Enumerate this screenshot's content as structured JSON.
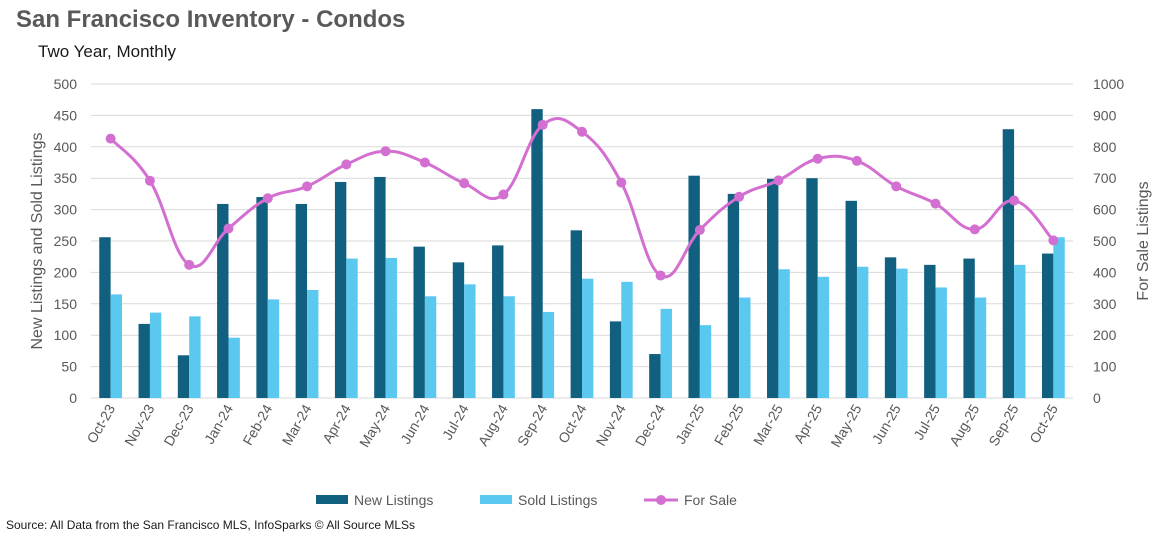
{
  "title": "San Francisco Inventory - Condos",
  "subtitle": "Two Year, Monthly",
  "source": "Source: All Data from the San Francisco MLS, InfoSparks © All Source MLSs",
  "colors": {
    "new": "#12607f",
    "sold": "#5bc8f0",
    "forsale": "#d36fd0",
    "grid": "#d9d9d9"
  },
  "chart_data": {
    "type": "bar",
    "categories": [
      "Oct-23",
      "Nov-23",
      "Dec-23",
      "Jan-24",
      "Feb-24",
      "Mar-24",
      "Apr-24",
      "May-24",
      "Jun-24",
      "Jul-24",
      "Aug-24",
      "Sep-24",
      "Oct-24",
      "Nov-24",
      "Dec-24",
      "Jan-25",
      "Feb-25",
      "Mar-25",
      "Apr-25",
      "May-25",
      "Jun-25",
      "Jul-25",
      "Aug-25",
      "Sep-25",
      "Oct-25"
    ],
    "series": [
      {
        "name": "New Listings",
        "type": "bar",
        "axis": "left",
        "values": [
          256,
          118,
          68,
          309,
          320,
          309,
          344,
          352,
          241,
          216,
          243,
          460,
          267,
          122,
          70,
          354,
          325,
          349,
          350,
          314,
          224,
          212,
          222,
          428,
          230
        ]
      },
      {
        "name": "Sold Listings",
        "type": "bar",
        "axis": "left",
        "values": [
          165,
          136,
          130,
          96,
          157,
          172,
          222,
          223,
          162,
          181,
          162,
          137,
          190,
          185,
          142,
          116,
          160,
          205,
          193,
          209,
          206,
          176,
          160,
          212,
          256
        ]
      },
      {
        "name": "For Sale",
        "type": "line",
        "axis": "right",
        "values": [
          826,
          692,
          424,
          540,
          636,
          674,
          744,
          786,
          750,
          684,
          648,
          870,
          848,
          686,
          390,
          535,
          641,
          693,
          762,
          755,
          674,
          619,
          537,
          629,
          502
        ]
      }
    ],
    "ylabel": "New Listings and Sold Listings",
    "y2label": "For Sale Listings",
    "ylim": [
      0,
      500
    ],
    "y2lim": [
      0,
      1000
    ],
    "yticks": [
      "0",
      "50",
      "100",
      "150",
      "200",
      "250",
      "300",
      "350",
      "400",
      "450",
      "500"
    ],
    "y2ticks": [
      "0",
      "100",
      "200",
      "300",
      "400",
      "500",
      "600",
      "700",
      "800",
      "900",
      "1000"
    ],
    "grid": true,
    "legend": "bottom"
  }
}
